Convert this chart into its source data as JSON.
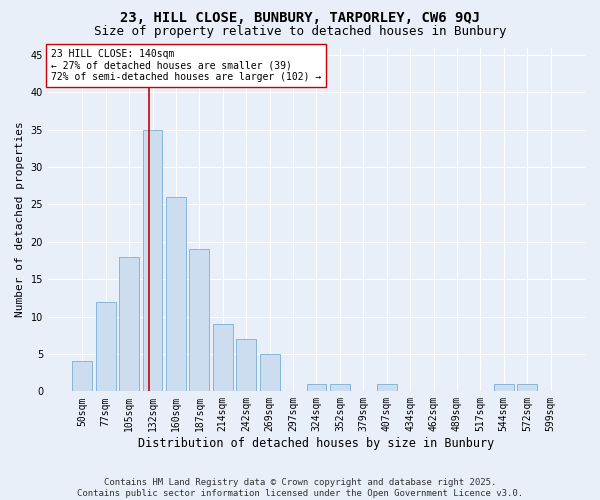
{
  "title1": "23, HILL CLOSE, BUNBURY, TARPORLEY, CW6 9QJ",
  "title2": "Size of property relative to detached houses in Bunbury",
  "xlabel": "Distribution of detached houses by size in Bunbury",
  "ylabel": "Number of detached properties",
  "categories": [
    "50sqm",
    "77sqm",
    "105sqm",
    "132sqm",
    "160sqm",
    "187sqm",
    "214sqm",
    "242sqm",
    "269sqm",
    "297sqm",
    "324sqm",
    "352sqm",
    "379sqm",
    "407sqm",
    "434sqm",
    "462sqm",
    "489sqm",
    "517sqm",
    "544sqm",
    "572sqm",
    "599sqm"
  ],
  "values": [
    4,
    12,
    18,
    35,
    26,
    19,
    9,
    7,
    5,
    0,
    1,
    1,
    0,
    1,
    0,
    0,
    0,
    0,
    1,
    1,
    0
  ],
  "bar_color": "#ccddf0",
  "bar_edge_color": "#7aafd4",
  "vline_index": 3,
  "vline_color": "#cc0000",
  "annotation_text": "23 HILL CLOSE: 140sqm\n← 27% of detached houses are smaller (39)\n72% of semi-detached houses are larger (102) →",
  "ann_box_color": "#ffffff",
  "ann_edge_color": "#cc0000",
  "ylim": [
    0,
    46
  ],
  "yticks": [
    0,
    5,
    10,
    15,
    20,
    25,
    30,
    35,
    40,
    45
  ],
  "bg_color": "#e8eff8",
  "grid_color": "#ffffff",
  "footer1": "Contains HM Land Registry data © Crown copyright and database right 2025.",
  "footer2": "Contains public sector information licensed under the Open Government Licence v3.0.",
  "title_fontsize": 10,
  "subtitle_fontsize": 9,
  "ylabel_fontsize": 8,
  "xlabel_fontsize": 8.5,
  "tick_fontsize": 7,
  "ann_fontsize": 7,
  "footer_fontsize": 6.5
}
